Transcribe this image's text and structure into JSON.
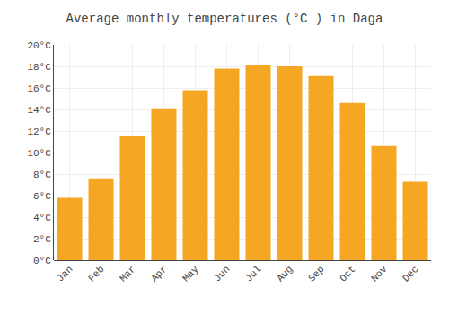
{
  "chart_data": {
    "type": "bar",
    "title": "Average monthly temperatures (°C ) in Daga",
    "categories": [
      "Jan",
      "Feb",
      "Mar",
      "Apr",
      "May",
      "Jun",
      "Jul",
      "Aug",
      "Sep",
      "Oct",
      "Nov",
      "Dec"
    ],
    "values": [
      5.8,
      7.6,
      11.5,
      14.1,
      15.8,
      17.8,
      18.1,
      18.0,
      17.1,
      14.6,
      10.6,
      7.3
    ],
    "color": "#F5A623",
    "ylim": [
      0,
      20
    ],
    "yticks": [
      {
        "value": 0,
        "label": "0°C"
      },
      {
        "value": 2,
        "label": "2°C"
      },
      {
        "value": 4,
        "label": "4°C"
      },
      {
        "value": 6,
        "label": "6°C"
      },
      {
        "value": 8,
        "label": "8°C"
      },
      {
        "value": 10,
        "label": "10°C"
      },
      {
        "value": 12,
        "label": "12°C"
      },
      {
        "value": 14,
        "label": "14°C"
      },
      {
        "value": 16,
        "label": "16°C"
      },
      {
        "value": 18,
        "label": "18°C"
      },
      {
        "value": 20,
        "label": "20°C"
      }
    ],
    "grid": true
  }
}
